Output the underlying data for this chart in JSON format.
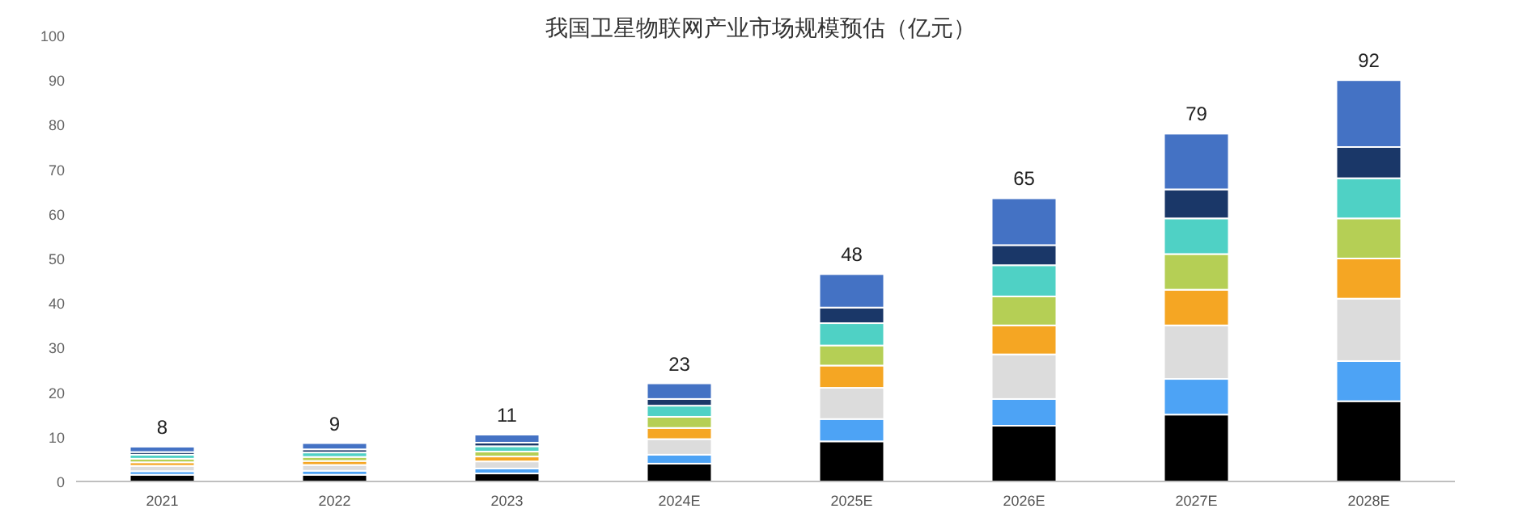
{
  "chart_data": {
    "type": "bar",
    "title": "我国卫星物联网产业市场规模预估（亿元）",
    "categories": [
      "2021",
      "2022",
      "2023",
      "2024E",
      "2025E",
      "2026E",
      "2027E",
      "2028E"
    ],
    "stacked": true,
    "series": [
      {
        "color": "#000000",
        "values": [
          1.5,
          1.5,
          1.8,
          4,
          9,
          12.5,
          15,
          18
        ]
      },
      {
        "color": "#4da3f5",
        "values": [
          0.8,
          0.9,
          1.1,
          2,
          5,
          6,
          8,
          9
        ]
      },
      {
        "color": "#dcdcdc",
        "values": [
          1.2,
          1.3,
          1.6,
          3.5,
          7,
          10,
          12,
          14
        ]
      },
      {
        "color": "#f5a623",
        "values": [
          0.8,
          0.9,
          1.1,
          2.5,
          5,
          6.5,
          8,
          9
        ]
      },
      {
        "color": "#b5cf55",
        "values": [
          0.8,
          0.9,
          1.1,
          2.5,
          4.5,
          6.5,
          8,
          9
        ]
      },
      {
        "color": "#4fd1c5",
        "values": [
          0.9,
          1,
          1.2,
          2.5,
          5,
          7,
          8,
          9
        ]
      },
      {
        "color": "#1a3768",
        "values": [
          0.6,
          0.7,
          0.8,
          1.5,
          3.5,
          4.5,
          6.5,
          7
        ]
      },
      {
        "color": "#4472c4",
        "values": [
          1.2,
          1.4,
          1.8,
          3.5,
          7.5,
          10.5,
          12.5,
          15
        ]
      }
    ],
    "totals": [
      "8",
      "9",
      "11",
      "23",
      "48",
      "65",
      "79",
      "92"
    ],
    "ylim": [
      0,
      100
    ],
    "yticks": [
      0,
      10,
      20,
      30,
      40,
      50,
      60,
      70,
      80,
      90,
      100
    ],
    "grid": false
  }
}
